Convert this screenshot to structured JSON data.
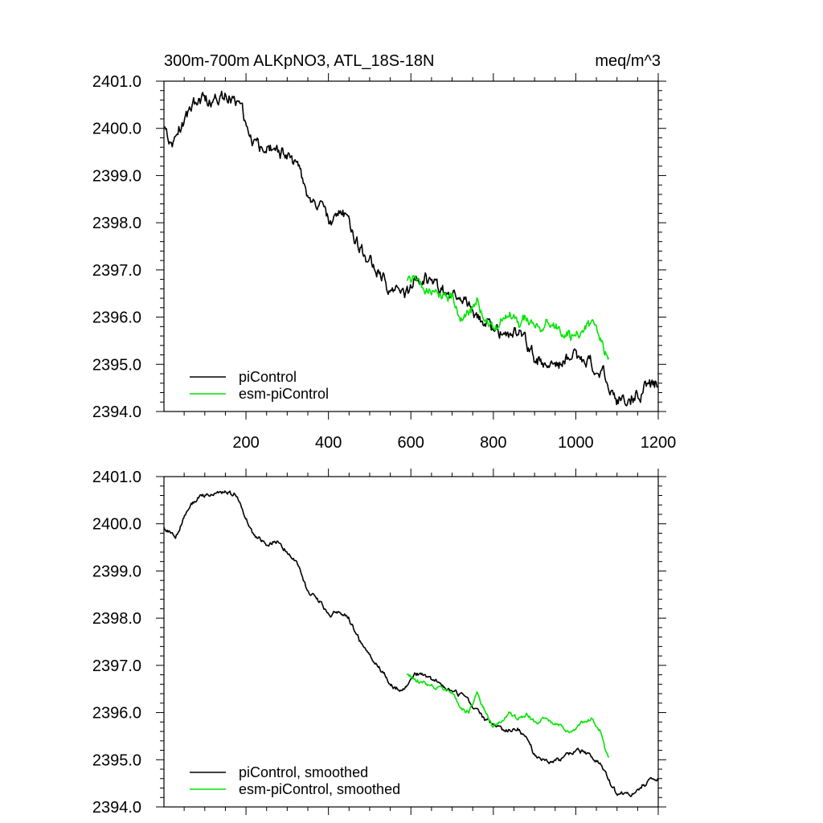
{
  "figure": {
    "title": "300m-700m ALKpNO3, ATL_18S-18N",
    "units": "meq/m^3"
  },
  "colors": {
    "picontrol": "#000000",
    "esm": "#00e600",
    "axis": "#000000"
  },
  "chart_data": [
    {
      "type": "line",
      "title": "300m-700m ALKpNO3, ATL_18S-18N",
      "units_label": "meq/m^3",
      "xlabel": "",
      "ylabel": "",
      "xlim": [
        1,
        1200
      ],
      "ylim": [
        2394.0,
        2401.0
      ],
      "x_ticks": [
        200,
        400,
        600,
        800,
        1000,
        1200
      ],
      "x_tick_labels": [
        "200",
        "400",
        "600",
        "800",
        "1000",
        "1200"
      ],
      "y_ticks": [
        2394.0,
        2395.0,
        2396.0,
        2397.0,
        2398.0,
        2399.0,
        2400.0,
        2401.0
      ],
      "y_tick_labels": [
        "2394.0",
        "2395.0",
        "2396.0",
        "2397.0",
        "2398.0",
        "2399.0",
        "2400.0",
        "2401.0"
      ],
      "legend_position": "bottom-left",
      "series": [
        {
          "name": "piControl",
          "color": "#000000",
          "noise": 0.12,
          "x": [
            1,
            30,
            60,
            90,
            120,
            150,
            180,
            200,
            220,
            250,
            270,
            300,
            330,
            350,
            380,
            400,
            430,
            450,
            470,
            500,
            520,
            550,
            580,
            590,
            610,
            630,
            650,
            670,
            700,
            730,
            760,
            780,
            800,
            830,
            860,
            880,
            900,
            930,
            960,
            1000,
            1030,
            1060,
            1080,
            1100,
            1130,
            1160,
            1190,
            1200
          ],
          "y": [
            2399.9,
            2399.75,
            2400.35,
            2400.6,
            2400.65,
            2400.7,
            2400.6,
            2400.1,
            2399.75,
            2399.55,
            2399.65,
            2399.4,
            2399.1,
            2398.55,
            2398.35,
            2398.05,
            2398.15,
            2398.0,
            2397.6,
            2397.2,
            2397.0,
            2396.6,
            2396.45,
            2396.55,
            2396.8,
            2396.8,
            2396.7,
            2396.6,
            2396.45,
            2396.35,
            2396.05,
            2395.85,
            2395.75,
            2395.6,
            2395.65,
            2395.45,
            2395.1,
            2394.95,
            2395.0,
            2395.2,
            2395.1,
            2394.9,
            2394.55,
            2394.3,
            2394.25,
            2394.45,
            2394.6,
            2394.6
          ]
        },
        {
          "name": "esm-piControl",
          "color": "#00e600",
          "noise": 0.1,
          "x": [
            590,
            610,
            640,
            670,
            700,
            720,
            740,
            760,
            780,
            800,
            820,
            840,
            860,
            880,
            900,
            930,
            960,
            990,
            1020,
            1040,
            1060,
            1070,
            1080
          ],
          "y": [
            2396.8,
            2396.7,
            2396.6,
            2396.5,
            2396.45,
            2396.1,
            2396.0,
            2396.4,
            2396.05,
            2395.7,
            2395.85,
            2396.0,
            2395.85,
            2395.95,
            2395.8,
            2395.85,
            2395.75,
            2395.6,
            2395.8,
            2395.85,
            2395.6,
            2395.25,
            2395.1
          ]
        }
      ],
      "legend": [
        "piControl",
        "esm-piControl"
      ]
    },
    {
      "type": "line",
      "title": "",
      "xlabel": "",
      "ylabel": "",
      "xlim": [
        1,
        1200
      ],
      "ylim": [
        2394.0,
        2401.0
      ],
      "x_ticks": [
        200,
        400,
        600,
        800,
        1000,
        1200
      ],
      "x_tick_labels": [],
      "y_ticks": [
        2394.0,
        2395.0,
        2396.0,
        2397.0,
        2398.0,
        2399.0,
        2400.0,
        2401.0
      ],
      "y_tick_labels": [
        "2394.0",
        "2395.0",
        "2396.0",
        "2397.0",
        "2398.0",
        "2399.0",
        "2400.0",
        "2401.0"
      ],
      "legend_position": "bottom-left",
      "series": [
        {
          "name": "piControl, smoothed",
          "color": "#000000",
          "noise": 0.04,
          "x": [
            1,
            30,
            60,
            90,
            120,
            150,
            180,
            200,
            220,
            250,
            270,
            300,
            330,
            350,
            380,
            400,
            430,
            450,
            470,
            500,
            520,
            550,
            580,
            590,
            610,
            630,
            650,
            670,
            700,
            730,
            760,
            780,
            800,
            830,
            860,
            880,
            900,
            930,
            960,
            1000,
            1030,
            1060,
            1080,
            1100,
            1130,
            1160,
            1190,
            1200
          ],
          "y": [
            2399.9,
            2399.75,
            2400.35,
            2400.6,
            2400.65,
            2400.7,
            2400.6,
            2400.1,
            2399.75,
            2399.55,
            2399.65,
            2399.4,
            2399.1,
            2398.55,
            2398.35,
            2398.05,
            2398.15,
            2398.0,
            2397.6,
            2397.2,
            2397.0,
            2396.6,
            2396.45,
            2396.55,
            2396.8,
            2396.8,
            2396.7,
            2396.6,
            2396.45,
            2396.35,
            2396.05,
            2395.85,
            2395.75,
            2395.6,
            2395.65,
            2395.45,
            2395.1,
            2394.95,
            2395.0,
            2395.2,
            2395.1,
            2394.9,
            2394.55,
            2394.3,
            2394.25,
            2394.45,
            2394.6,
            2394.6
          ]
        },
        {
          "name": "esm-piControl, smoothed",
          "color": "#00e600",
          "noise": 0.04,
          "x": [
            590,
            610,
            640,
            670,
            700,
            720,
            740,
            760,
            780,
            800,
            820,
            840,
            860,
            880,
            900,
            930,
            960,
            990,
            1020,
            1040,
            1060,
            1070,
            1080
          ],
          "y": [
            2396.8,
            2396.7,
            2396.6,
            2396.5,
            2396.45,
            2396.1,
            2396.0,
            2396.4,
            2396.05,
            2395.7,
            2395.85,
            2396.0,
            2395.85,
            2395.95,
            2395.8,
            2395.85,
            2395.75,
            2395.6,
            2395.8,
            2395.85,
            2395.6,
            2395.25,
            2395.0
          ]
        }
      ],
      "legend": [
        "piControl, smoothed",
        "esm-piControl, smoothed"
      ]
    }
  ]
}
